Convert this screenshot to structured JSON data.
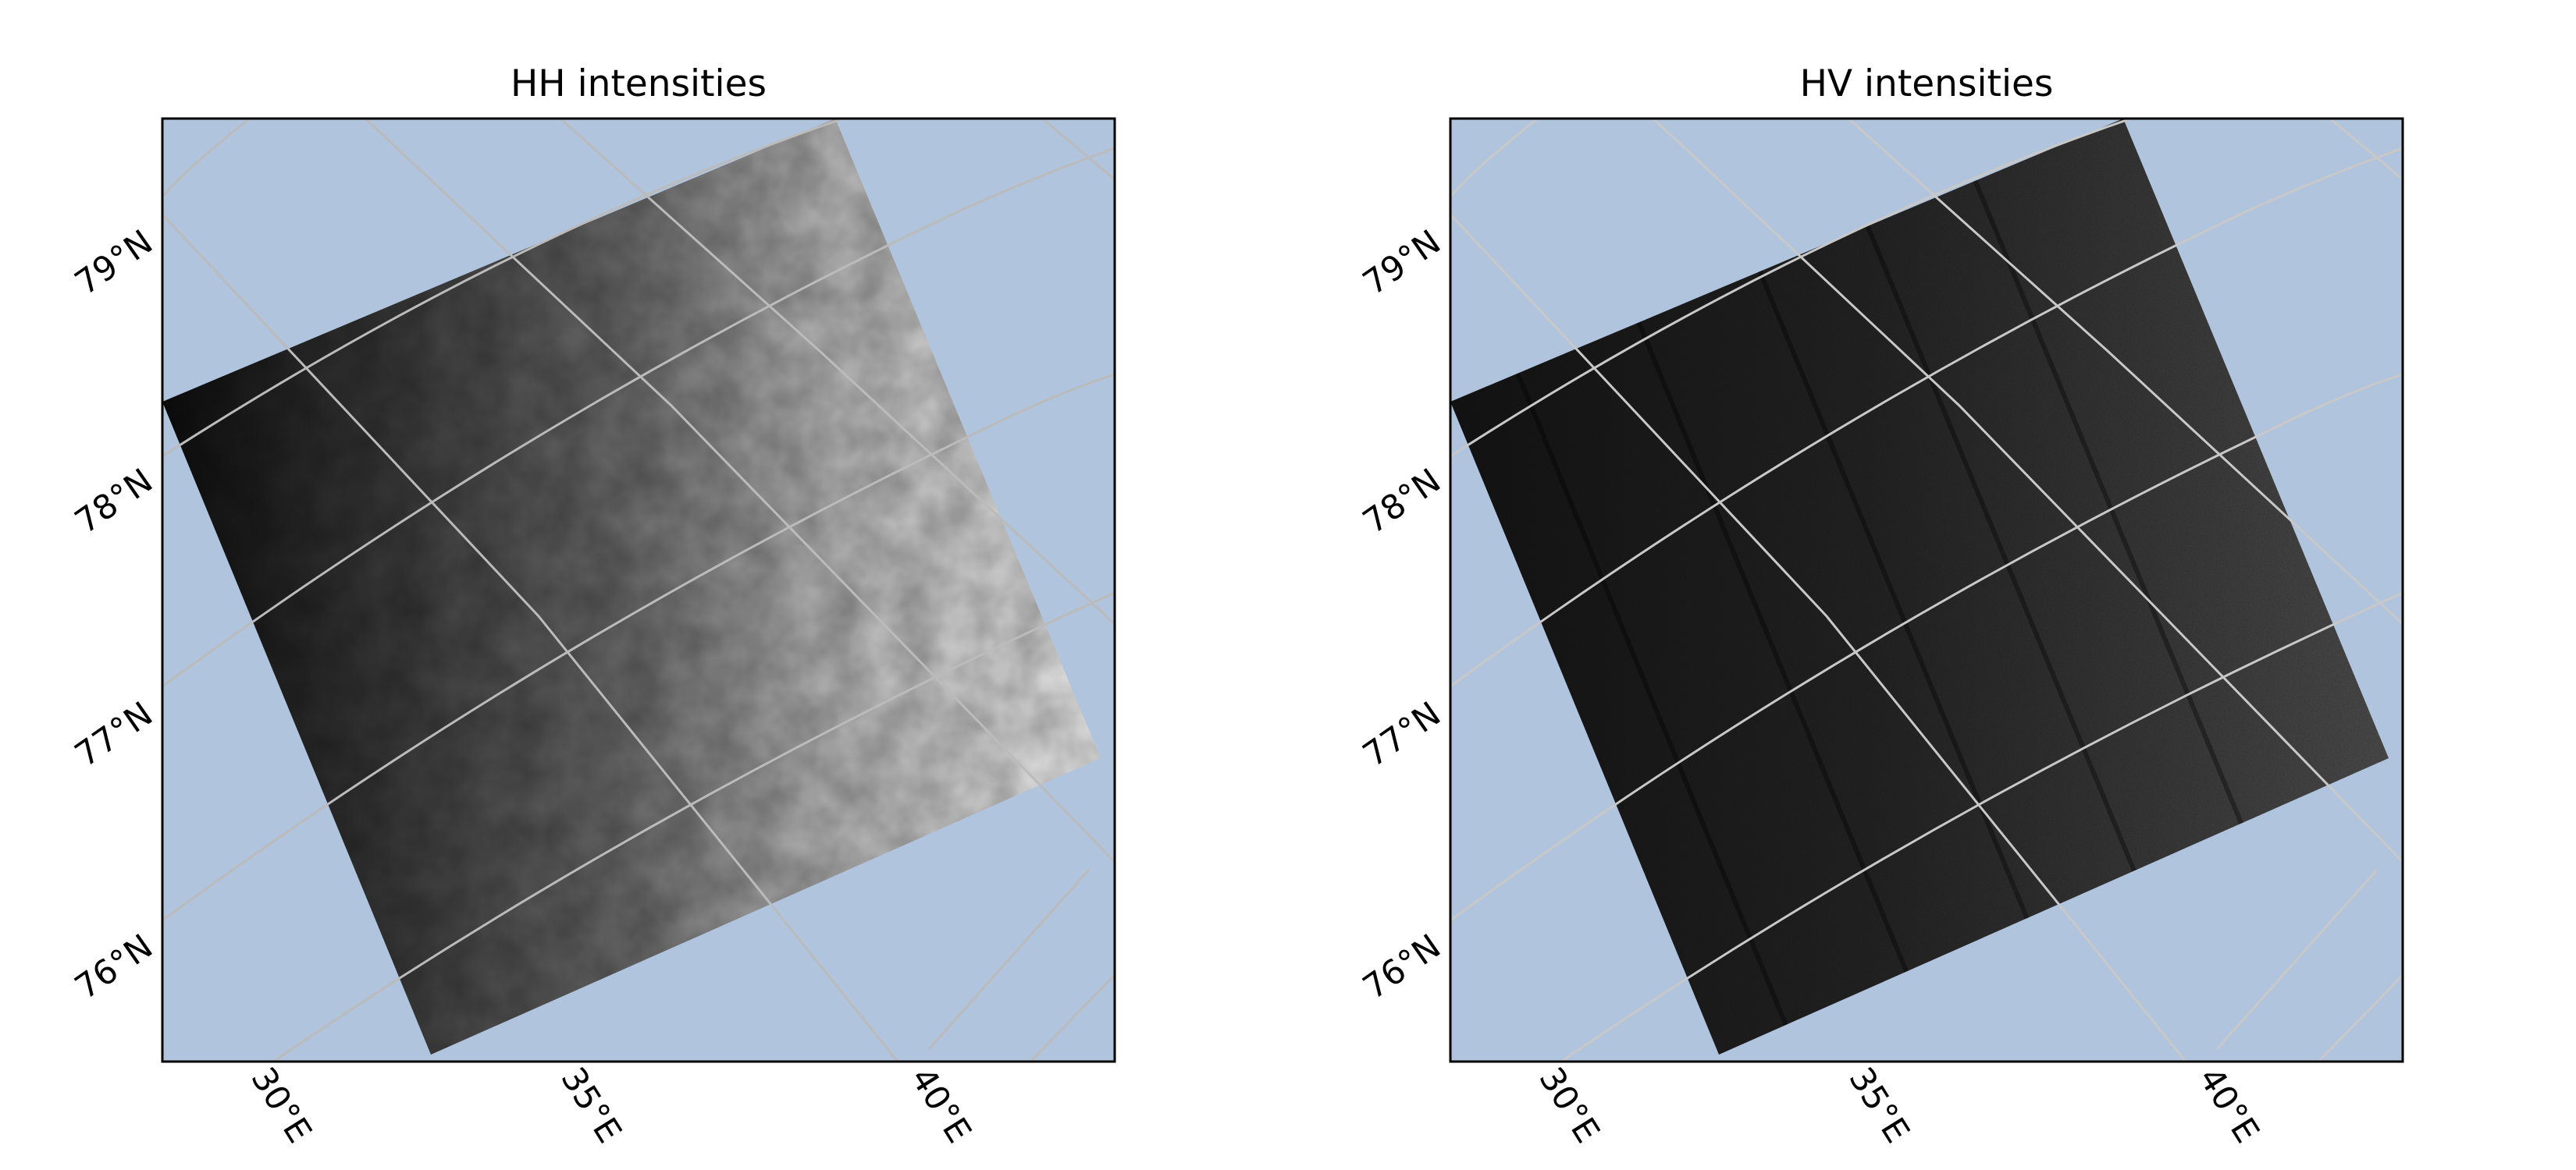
{
  "colors": {
    "ocean": "#b0c4de",
    "gridline": "#bbbbbb",
    "frame": "#000000"
  },
  "panels": [
    {
      "title": "HH intensities",
      "variant": "hh",
      "lat_labels": [
        "79°N",
        "78°N",
        "77°N",
        "76°N"
      ],
      "lon_labels": [
        "30°E",
        "35°E",
        "40°E"
      ]
    },
    {
      "title": "HV intensities",
      "variant": "hv",
      "lat_labels": [
        "79°N",
        "78°N",
        "77°N",
        "76°N"
      ],
      "lon_labels": [
        "30°E",
        "35°E",
        "40°E"
      ]
    }
  ]
}
